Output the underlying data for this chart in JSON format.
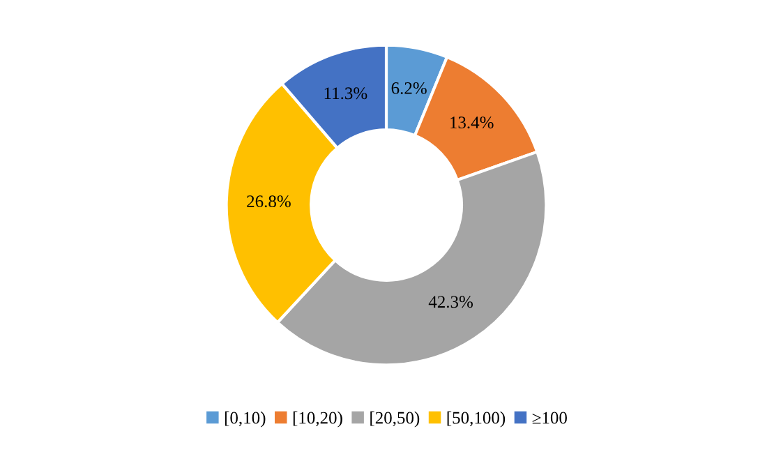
{
  "chart_data": {
    "type": "donut",
    "categories": [
      "[0,10)",
      "[10,20)",
      "[20,50)",
      "[50,100)",
      "≥100"
    ],
    "values": [
      6.2,
      13.4,
      42.3,
      26.8,
      11.3
    ],
    "colors": [
      "#5b9bd5",
      "#ed7d31",
      "#a5a5a5",
      "#ffc000",
      "#4472c4"
    ],
    "value_labels": [
      "6.2%",
      "13.4%",
      "42.3%",
      "26.8%",
      "11.3%"
    ],
    "legend": "bottom"
  }
}
